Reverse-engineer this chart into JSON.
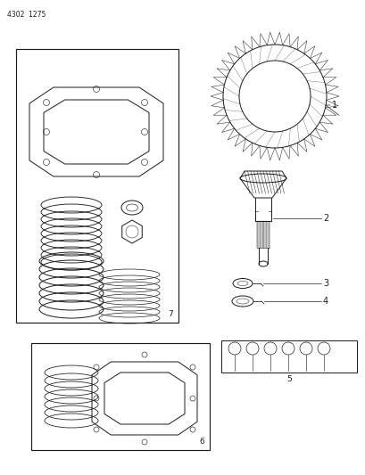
{
  "title": "4302  1275",
  "bg_color": "#ffffff",
  "line_color": "#1a1a1a",
  "fig_width": 4.1,
  "fig_height": 5.33,
  "dpi": 100
}
